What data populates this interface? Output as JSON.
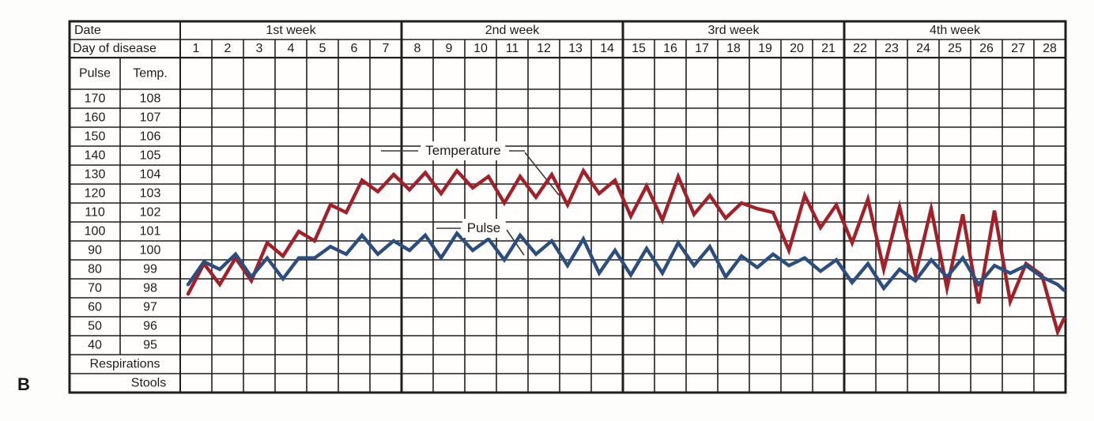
{
  "figure_label": "B",
  "colors": {
    "temperature_line": "#a32029",
    "pulse_line": "#2c4e7e",
    "grid_line": "#1f1f1f",
    "paper": "#fffefd"
  },
  "chart": {
    "header": {
      "date_label": "Date",
      "weeks": [
        "1st week",
        "2nd week",
        "3rd week",
        "4th week"
      ],
      "day_label": "Day of disease",
      "days": [
        1,
        2,
        3,
        4,
        5,
        6,
        7,
        8,
        9,
        10,
        11,
        12,
        13,
        14,
        15,
        16,
        17,
        18,
        19,
        20,
        21,
        22,
        23,
        24,
        25,
        26,
        27,
        28
      ],
      "pulse_col_label": "Pulse",
      "temp_col_label": "Temp."
    },
    "scales": {
      "pulse": [
        170,
        160,
        150,
        140,
        130,
        120,
        110,
        100,
        90,
        80,
        70,
        60,
        50,
        40
      ],
      "temp": [
        108,
        107,
        106,
        105,
        104,
        103,
        102,
        101,
        100,
        99,
        98,
        97,
        96,
        95
      ]
    },
    "bottom_rows": [
      "Respirations",
      "Stools"
    ],
    "series_labels": {
      "temperature": "Temperature",
      "pulse": "Pulse"
    }
  },
  "chart_data": {
    "type": "line",
    "title": "Clinical fever chart (figure B): temperature and pulse over 28 days of disease",
    "x_unit": "day of disease, two readings per day (morning / evening)",
    "x_range": [
      1,
      28
    ],
    "grid": true,
    "temp_axis": {
      "label": "Temp.",
      "ticks": [
        108,
        107,
        106,
        105,
        104,
        103,
        102,
        101,
        100,
        99,
        98,
        97,
        96,
        95
      ]
    },
    "pulse_axis": {
      "label": "Pulse",
      "ticks": [
        170,
        160,
        150,
        140,
        130,
        120,
        110,
        100,
        90,
        80,
        70,
        60,
        50,
        40
      ]
    },
    "extra_rows": [
      "Respirations",
      "Stools"
    ],
    "series": [
      {
        "name": "Temperature",
        "axis": "temp",
        "color": "#a32029",
        "points": [
          [
            1.25,
            97.7
          ],
          [
            1.75,
            99.3
          ],
          [
            2.25,
            98.2
          ],
          [
            2.75,
            99.6
          ],
          [
            3.25,
            98.4
          ],
          [
            3.75,
            100.4
          ],
          [
            4.25,
            99.7
          ],
          [
            4.75,
            101.0
          ],
          [
            5.25,
            100.5
          ],
          [
            5.75,
            102.4
          ],
          [
            6.25,
            102.0
          ],
          [
            6.75,
            103.7
          ],
          [
            7.25,
            103.1
          ],
          [
            7.75,
            104.0
          ],
          [
            8.25,
            103.2
          ],
          [
            8.75,
            104.1
          ],
          [
            9.25,
            103.0
          ],
          [
            9.75,
            104.2
          ],
          [
            10.25,
            103.3
          ],
          [
            10.75,
            103.9
          ],
          [
            11.25,
            102.5
          ],
          [
            11.75,
            103.9
          ],
          [
            12.25,
            102.8
          ],
          [
            12.75,
            104.0
          ],
          [
            13.25,
            102.4
          ],
          [
            13.75,
            104.2
          ],
          [
            14.25,
            103.0
          ],
          [
            14.75,
            103.7
          ],
          [
            15.25,
            101.8
          ],
          [
            15.75,
            103.4
          ],
          [
            16.25,
            101.6
          ],
          [
            16.75,
            103.9
          ],
          [
            17.25,
            101.9
          ],
          [
            17.75,
            102.9
          ],
          [
            18.25,
            101.7
          ],
          [
            18.75,
            102.5
          ],
          [
            19.25,
            102.2
          ],
          [
            19.75,
            102.0
          ],
          [
            20.25,
            100.0
          ],
          [
            20.75,
            102.9
          ],
          [
            21.25,
            101.2
          ],
          [
            21.75,
            102.4
          ],
          [
            22.25,
            100.4
          ],
          [
            22.75,
            102.7
          ],
          [
            23.25,
            99.0
          ],
          [
            23.75,
            102.3
          ],
          [
            24.25,
            98.7
          ],
          [
            24.75,
            102.2
          ],
          [
            25.25,
            98.0
          ],
          [
            25.75,
            101.9
          ],
          [
            26.25,
            97.2
          ],
          [
            26.75,
            102.1
          ],
          [
            27.25,
            97.3
          ],
          [
            27.75,
            99.3
          ],
          [
            28.25,
            98.7
          ],
          [
            28.75,
            95.7
          ],
          [
            28.95,
            96.4
          ]
        ]
      },
      {
        "name": "Pulse",
        "axis": "pulse",
        "color": "#2c4e7e",
        "points": [
          [
            1.25,
            72
          ],
          [
            1.75,
            84
          ],
          [
            2.25,
            80
          ],
          [
            2.75,
            88
          ],
          [
            3.25,
            76
          ],
          [
            3.75,
            86
          ],
          [
            4.25,
            75
          ],
          [
            4.75,
            86
          ],
          [
            5.25,
            86
          ],
          [
            5.75,
            92
          ],
          [
            6.25,
            88
          ],
          [
            6.75,
            98
          ],
          [
            7.25,
            88
          ],
          [
            7.75,
            95
          ],
          [
            8.25,
            90
          ],
          [
            8.75,
            98
          ],
          [
            9.25,
            86
          ],
          [
            9.75,
            99
          ],
          [
            10.25,
            90
          ],
          [
            10.75,
            96
          ],
          [
            11.25,
            85
          ],
          [
            11.75,
            98
          ],
          [
            12.25,
            88
          ],
          [
            12.75,
            95
          ],
          [
            13.25,
            82
          ],
          [
            13.75,
            96
          ],
          [
            14.25,
            78
          ],
          [
            14.75,
            90
          ],
          [
            15.25,
            77
          ],
          [
            15.75,
            91
          ],
          [
            16.25,
            78
          ],
          [
            16.75,
            94
          ],
          [
            17.25,
            82
          ],
          [
            17.75,
            92
          ],
          [
            18.25,
            76
          ],
          [
            18.75,
            87
          ],
          [
            19.25,
            81
          ],
          [
            19.75,
            88
          ],
          [
            20.25,
            82
          ],
          [
            20.75,
            86
          ],
          [
            21.25,
            79
          ],
          [
            21.75,
            85
          ],
          [
            22.25,
            73
          ],
          [
            22.75,
            83
          ],
          [
            23.25,
            70
          ],
          [
            23.75,
            80
          ],
          [
            24.25,
            74
          ],
          [
            24.75,
            85
          ],
          [
            25.25,
            76
          ],
          [
            25.75,
            86
          ],
          [
            26.25,
            72
          ],
          [
            26.75,
            82
          ],
          [
            27.25,
            78
          ],
          [
            27.75,
            82
          ],
          [
            28.25,
            76
          ],
          [
            28.75,
            72
          ],
          [
            28.95,
            69
          ]
        ]
      }
    ]
  }
}
